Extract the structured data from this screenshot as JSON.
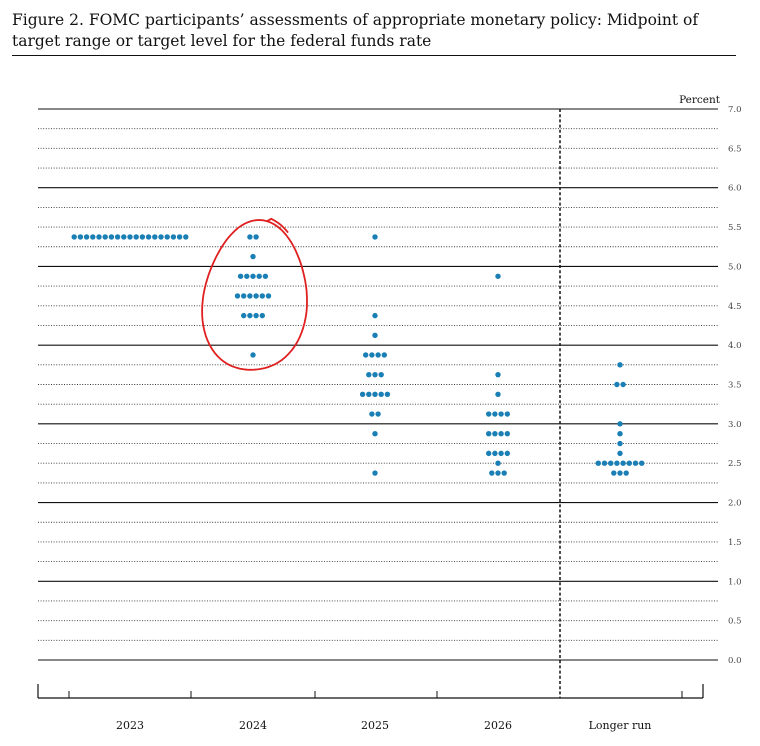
{
  "figure": {
    "title": "Figure 2.  FOMC participants’ assessments of appropriate monetary policy: Midpoint of target range or target level for the federal funds rate"
  },
  "chart_data": {
    "type": "scatter",
    "subtype": "dot-plot",
    "title": "Figure 2.  FOMC participants’ assessments of appropriate monetary policy: Midpoint of target range or target level for the federal funds rate",
    "ylabel": "Percent",
    "ylim": [
      0,
      7.0
    ],
    "y_ticks": [
      "7.0",
      "6.5",
      "6.0",
      "5.5",
      "5.0",
      "4.5",
      "4.0",
      "3.5",
      "3.0",
      "2.5",
      "2.0",
      "1.5",
      "1.0",
      "0.5",
      "0.0"
    ],
    "y_axis_side": "right",
    "categories": [
      "2023",
      "2024",
      "2025",
      "2026",
      "Longer run"
    ],
    "dot_color": "#1a7fb5",
    "annotation_color": "#e02020",
    "grid": "dotted minor lines every 0.25, solid at whole percents",
    "separator_before": "Longer run",
    "annotation": "red hand-drawn circle around the 2024 dots",
    "dots": [
      [
        {
          "y": 5.375,
          "n": 19
        }
      ],
      [
        {
          "y": 5.375,
          "n": 2
        },
        {
          "y": 5.125,
          "n": 1
        },
        {
          "y": 4.875,
          "n": 5
        },
        {
          "y": 4.625,
          "n": 6
        },
        {
          "y": 4.375,
          "n": 4
        },
        {
          "y": 3.875,
          "n": 1
        }
      ],
      [
        {
          "y": 5.375,
          "n": 1
        },
        {
          "y": 4.375,
          "n": 1
        },
        {
          "y": 4.125,
          "n": 1
        },
        {
          "y": 3.875,
          "n": 4
        },
        {
          "y": 3.625,
          "n": 3
        },
        {
          "y": 3.375,
          "n": 5
        },
        {
          "y": 3.125,
          "n": 2
        },
        {
          "y": 2.875,
          "n": 1
        },
        {
          "y": 2.375,
          "n": 1
        }
      ],
      [
        {
          "y": 4.875,
          "n": 1
        },
        {
          "y": 3.625,
          "n": 1
        },
        {
          "y": 3.375,
          "n": 1
        },
        {
          "y": 3.125,
          "n": 4
        },
        {
          "y": 2.875,
          "n": 4
        },
        {
          "y": 2.625,
          "n": 4
        },
        {
          "y": 2.5,
          "n": 1
        },
        {
          "y": 2.375,
          "n": 3
        }
      ],
      [
        {
          "y": 3.75,
          "n": 1
        },
        {
          "y": 3.5,
          "n": 2
        },
        {
          "y": 3.0,
          "n": 1
        },
        {
          "y": 2.875,
          "n": 1
        },
        {
          "y": 2.75,
          "n": 1
        },
        {
          "y": 2.625,
          "n": 1
        },
        {
          "y": 2.5,
          "n": 8
        },
        {
          "y": 2.375,
          "n": 3
        }
      ]
    ]
  }
}
